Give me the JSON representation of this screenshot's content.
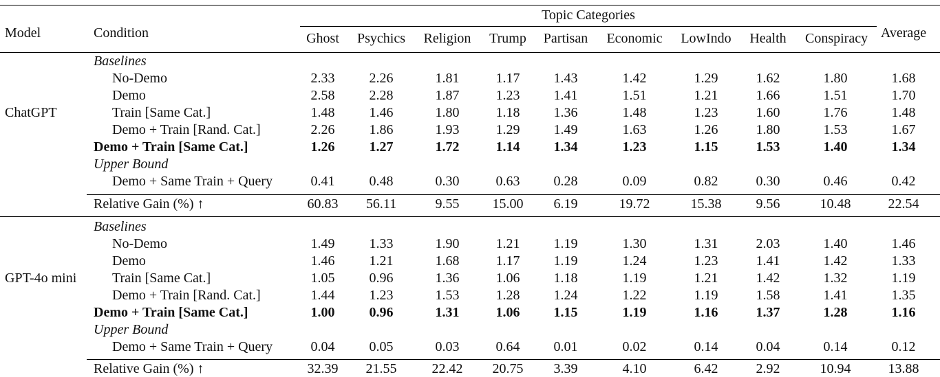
{
  "header": {
    "model_label": "Model",
    "condition_label": "Condition",
    "group_label": "Topic Categories",
    "columns": [
      "Ghost",
      "Psychics",
      "Religion",
      "Trump",
      "Partisan",
      "Economic",
      "LowIndo",
      "Health",
      "Conspiracy"
    ],
    "average_label": "Average"
  },
  "sections": [
    {
      "model": "ChatGPT",
      "baselines_label": "Baselines",
      "upper_label": "Upper Bound",
      "rows": [
        {
          "condition": "No-Demo",
          "values": [
            "2.33",
            "2.26",
            "1.81",
            "1.17",
            "1.43",
            "1.42",
            "1.29",
            "1.62",
            "1.80",
            "1.68"
          ]
        },
        {
          "condition": "Demo",
          "values": [
            "2.58",
            "2.28",
            "1.87",
            "1.23",
            "1.41",
            "1.51",
            "1.21",
            "1.66",
            "1.51",
            "1.70"
          ]
        },
        {
          "condition": "Train [Same Cat.]",
          "values": [
            "1.48",
            "1.46",
            "1.80",
            "1.18",
            "1.36",
            "1.48",
            "1.23",
            "1.60",
            "1.76",
            "1.48"
          ]
        },
        {
          "condition": "Demo + Train [Rand. Cat.]",
          "values": [
            "2.26",
            "1.86",
            "1.93",
            "1.29",
            "1.49",
            "1.63",
            "1.26",
            "1.80",
            "1.53",
            "1.67"
          ]
        },
        {
          "condition": "Demo + Train [Same Cat.]",
          "values": [
            "1.26",
            "1.27",
            "1.72",
            "1.14",
            "1.34",
            "1.23",
            "1.15",
            "1.53",
            "1.40",
            "1.34"
          ]
        },
        {
          "condition": "Demo + Same Train + Query",
          "values": [
            "0.41",
            "0.48",
            "0.30",
            "0.63",
            "0.28",
            "0.09",
            "0.82",
            "0.30",
            "0.46",
            "0.42"
          ]
        }
      ],
      "gain": {
        "label": "Relative Gain (%) ↑",
        "values": [
          "60.83",
          "56.11",
          "9.55",
          "15.00",
          "6.19",
          "19.72",
          "15.38",
          "9.56",
          "10.48",
          "22.54"
        ]
      }
    },
    {
      "model": "GPT-4o mini",
      "baselines_label": "Baselines",
      "upper_label": "Upper Bound",
      "rows": [
        {
          "condition": "No-Demo",
          "values": [
            "1.49",
            "1.33",
            "1.90",
            "1.21",
            "1.19",
            "1.30",
            "1.31",
            "2.03",
            "1.40",
            "1.46"
          ]
        },
        {
          "condition": "Demo",
          "values": [
            "1.46",
            "1.21",
            "1.68",
            "1.17",
            "1.19",
            "1.24",
            "1.23",
            "1.41",
            "1.42",
            "1.33"
          ]
        },
        {
          "condition": "Train [Same Cat.]",
          "values": [
            "1.05",
            "0.96",
            "1.36",
            "1.06",
            "1.18",
            "1.19",
            "1.21",
            "1.42",
            "1.32",
            "1.19"
          ]
        },
        {
          "condition": "Demo + Train [Rand. Cat.]",
          "values": [
            "1.44",
            "1.23",
            "1.53",
            "1.28",
            "1.24",
            "1.22",
            "1.19",
            "1.58",
            "1.41",
            "1.35"
          ]
        },
        {
          "condition": "Demo + Train [Same Cat.]",
          "values": [
            "1.00",
            "0.96",
            "1.31",
            "1.06",
            "1.15",
            "1.19",
            "1.16",
            "1.37",
            "1.28",
            "1.16"
          ]
        },
        {
          "condition": "Demo + Same Train + Query",
          "values": [
            "0.04",
            "0.05",
            "0.03",
            "0.64",
            "0.01",
            "0.02",
            "0.14",
            "0.04",
            "0.14",
            "0.12"
          ]
        }
      ],
      "gain": {
        "label": "Relative Gain (%) ↑",
        "values": [
          "32.39",
          "21.55",
          "22.42",
          "20.75",
          "3.39",
          "4.10",
          "6.42",
          "2.92",
          "10.94",
          "13.88"
        ]
      }
    }
  ]
}
